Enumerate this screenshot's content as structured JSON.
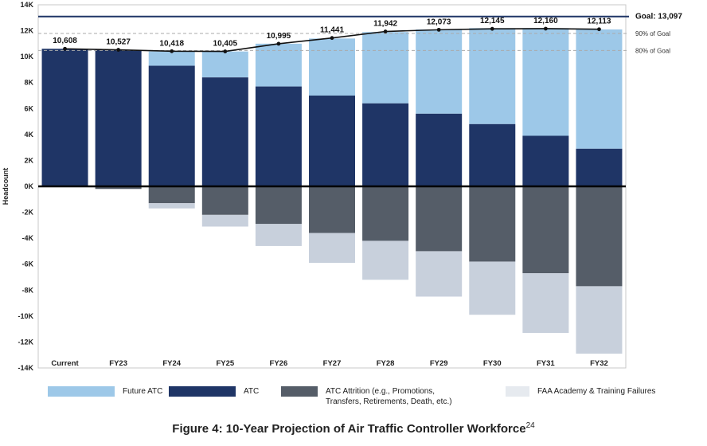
{
  "chart_data": {
    "type": "bar",
    "ylabel": "Headcount",
    "ylim": [
      -14000,
      14000
    ],
    "yticks": [
      14000,
      12000,
      10000,
      8000,
      6000,
      4000,
      2000,
      0,
      -2000,
      -4000,
      -6000,
      -8000,
      -10000,
      -12000,
      -14000
    ],
    "ytick_labels": [
      "14K",
      "12K",
      "10K",
      "8K",
      "6K",
      "4K",
      "2K",
      "0K",
      "-2K",
      "-4K",
      "-6K",
      "-8K",
      "-10K",
      "-12K",
      "-14K"
    ],
    "categories": [
      "Current",
      "FY23",
      "FY24",
      "FY25",
      "FY26",
      "FY27",
      "FY28",
      "FY29",
      "FY30",
      "FY31",
      "FY32"
    ],
    "series": [
      {
        "name": "Future ATC",
        "color": "#9dc8e8",
        "values": [
          0,
          0,
          1100,
          2000,
          3300,
          4400,
          5500,
          6500,
          7400,
          8300,
          9200
        ]
      },
      {
        "name": "ATC",
        "color": "#1f3566",
        "values": [
          10608,
          10527,
          9300,
          8400,
          7700,
          7000,
          6400,
          5600,
          4800,
          3900,
          2900
        ]
      },
      {
        "name": "ATC Attrition (e.g., Promotions, Transfers, Retirements, Death, etc.)",
        "color": "#555d68",
        "values": [
          0,
          -200,
          -1300,
          -2200,
          -2900,
          -3600,
          -4200,
          -5000,
          -5800,
          -6700,
          -7700
        ]
      },
      {
        "name": "FAA Academy & Training Failures",
        "color": "#c8d0dc",
        "values": [
          0,
          0,
          -400,
          -900,
          -1700,
          -2300,
          -3000,
          -3500,
          -4100,
          -4600,
          -5200
        ]
      }
    ],
    "line": {
      "values": [
        10608,
        10527,
        10418,
        10405,
        10995,
        11441,
        11942,
        12073,
        12145,
        12160,
        12113
      ],
      "labels": [
        "10,608",
        "10,527",
        "10,418",
        "10,405",
        "10,995",
        "11,441",
        "11,942",
        "12,073",
        "12,145",
        "12,160",
        "12,113"
      ]
    },
    "reference_lines": [
      {
        "value": 13097,
        "label": "Goal: 13,097",
        "style": "solid",
        "color": "#1f3566"
      },
      {
        "value": 11787,
        "label": "90% of Goal",
        "style": "dashed",
        "color": "#aaaaaa"
      },
      {
        "value": 10478,
        "label": "80% of Goal",
        "style": "dashed",
        "color": "#aaaaaa"
      }
    ],
    "grid": false,
    "legend_position": "bottom"
  },
  "caption": {
    "text": "Figure 4: 10-Year Projection of Air Traffic Controller Workforce",
    "footnote": "24"
  }
}
